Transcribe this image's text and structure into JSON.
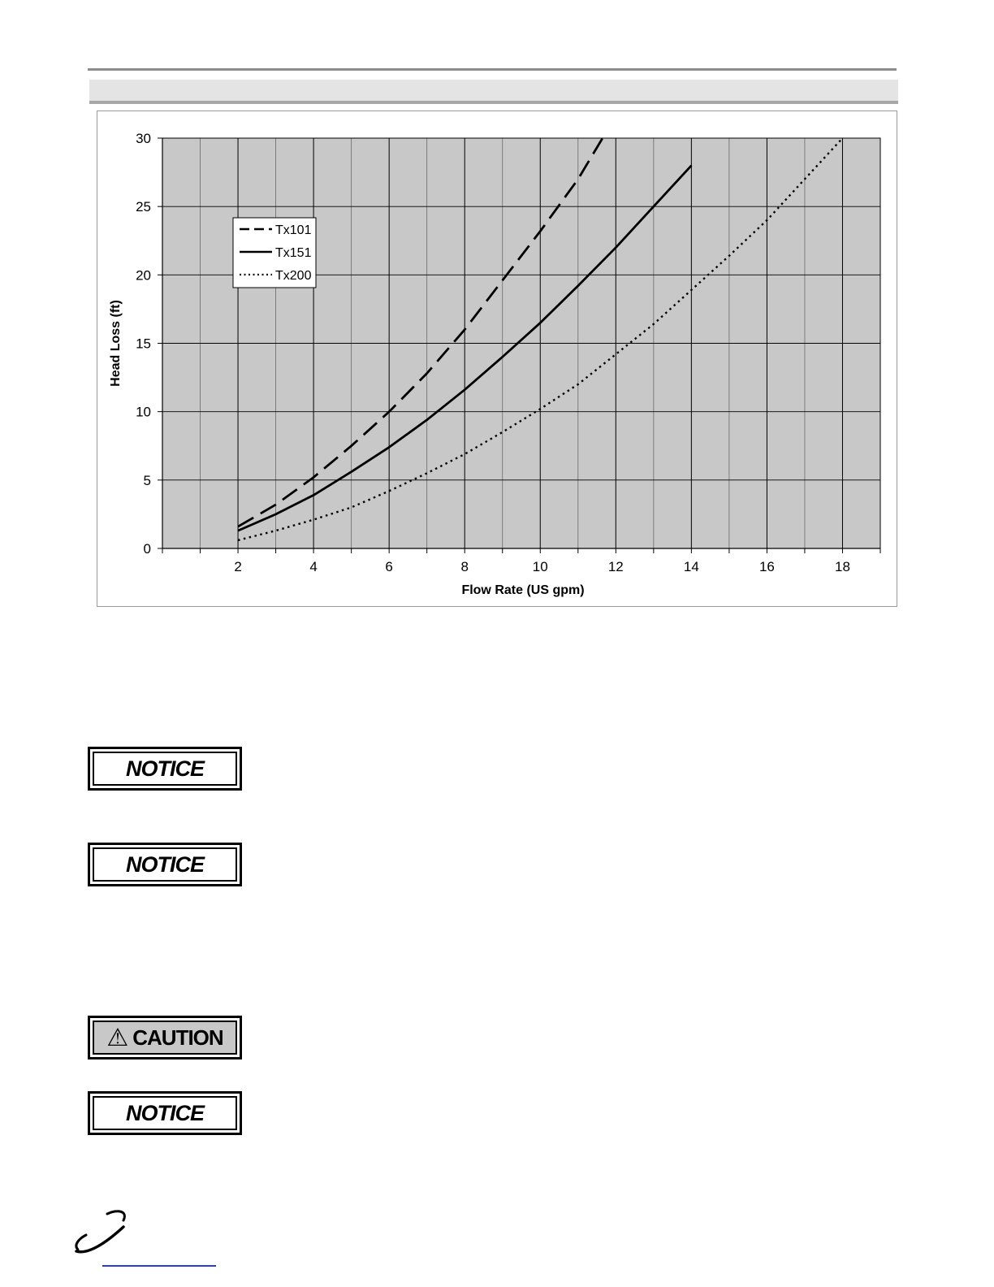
{
  "notices": {
    "notice_1": "NOTICE",
    "notice_2": "NOTICE",
    "caution": "CAUTION",
    "notice_3": "NOTICE"
  },
  "chart_data": {
    "type": "line",
    "title": "",
    "xlabel": "Flow Rate (US gpm)",
    "ylabel": "Head Loss (ft)",
    "xlim": [
      0,
      19
    ],
    "ylim": [
      0,
      30
    ],
    "xticks": [
      2,
      4,
      6,
      8,
      10,
      12,
      14,
      16,
      18
    ],
    "yticks": [
      0,
      5,
      10,
      15,
      20,
      25,
      30
    ],
    "grid": true,
    "legend_position": "top-left",
    "background_color": "#c8c8c8",
    "series": [
      {
        "name": "Tx101",
        "style": "dashed",
        "x": [
          2,
          3,
          4,
          5,
          6,
          7,
          8,
          9,
          10,
          11,
          11.65
        ],
        "y": [
          1.6,
          3.2,
          5.2,
          7.5,
          10.0,
          12.8,
          16.0,
          19.6,
          23.2,
          27.0,
          30.0
        ]
      },
      {
        "name": "Tx151",
        "style": "solid",
        "x": [
          2,
          3,
          4,
          5,
          6,
          7,
          8,
          9,
          10,
          11,
          12,
          13,
          14
        ],
        "y": [
          1.3,
          2.5,
          3.9,
          5.6,
          7.4,
          9.4,
          11.6,
          14.0,
          16.5,
          19.2,
          22.0,
          25.0,
          28.0
        ]
      },
      {
        "name": "Tx200",
        "style": "dotted",
        "x": [
          2,
          3,
          4,
          5,
          6,
          7,
          8,
          9,
          10,
          11,
          12,
          13,
          14,
          15,
          16,
          17,
          18
        ],
        "y": [
          0.6,
          1.3,
          2.1,
          3.0,
          4.2,
          5.5,
          6.9,
          8.5,
          10.2,
          12.0,
          14.2,
          16.4,
          18.9,
          21.4,
          24.0,
          27.0,
          30.0
        ]
      }
    ]
  }
}
